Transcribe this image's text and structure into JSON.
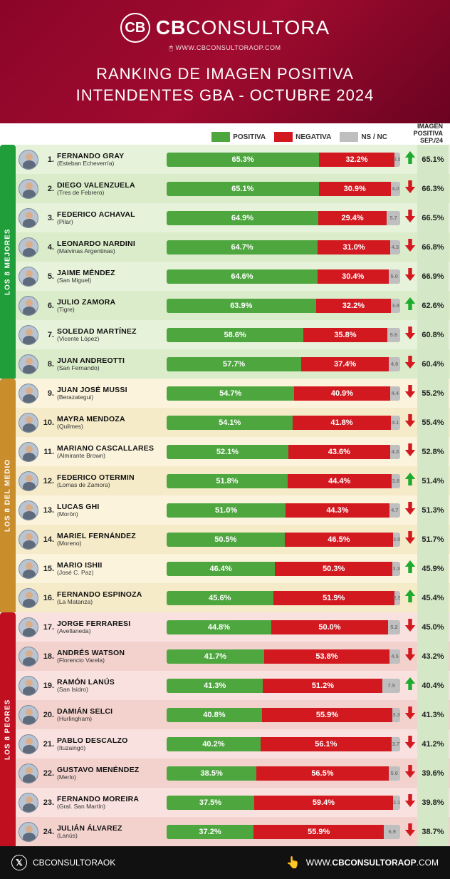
{
  "brand": {
    "cb": "CB",
    "name_bold": "CB",
    "name_rest": "CONSULTORA",
    "url": "WWW.CBCONSULTORAOP.COM"
  },
  "title_line1": "RANKING DE IMAGEN POSITIVA",
  "title_line2": "INTENDENTES GBA - OCTUBRE 2024",
  "legend": {
    "positive": "POSITIVA",
    "negative": "NEGATIVA",
    "nsnc": "NS / NC"
  },
  "prev_header_l1": "IMAGEN",
  "prev_header_l2": "POSITIVA",
  "prev_header_l3": "SEP./24",
  "colors": {
    "positive": "#4ea63f",
    "negative": "#d31920",
    "nsnc": "#bfbfbf",
    "group_best": "#1f9e3a",
    "group_mid": "#c98d2b",
    "group_worst": "#c01020",
    "row_best": "#e6f2da",
    "row_best_alt": "#daecc9",
    "row_mid": "#fbf3dc",
    "row_mid_alt": "#f6ebc9",
    "row_worst": "#f8e1de",
    "row_worst_alt": "#f3d2cd",
    "prev_col": "#d4e8c8",
    "arrow_up": "#1eaa2f",
    "arrow_down": "#d31920"
  },
  "groups": [
    {
      "label": "LOS 8 MEJORES",
      "color_key": "group_best"
    },
    {
      "label": "LOS 8 DEL MEDIO",
      "color_key": "group_mid"
    },
    {
      "label": "LOS 8 PEORES",
      "color_key": "group_worst"
    }
  ],
  "rows": [
    {
      "group": 0,
      "rank": "1.",
      "name": "FERNANDO GRAY",
      "place": "(Esteban Echeverría)",
      "pos": 65.3,
      "neg": 32.2,
      "ns": 2.5,
      "trend": "up",
      "prev": "65.1%"
    },
    {
      "group": 0,
      "rank": "2.",
      "name": "DIEGO VALENZUELA",
      "place": "(Tres de Febrero)",
      "pos": 65.1,
      "neg": 30.9,
      "ns": 4.0,
      "trend": "down",
      "prev": "66.3%"
    },
    {
      "group": 0,
      "rank": "3.",
      "name": "FEDERICO ACHAVAL",
      "place": "(Pilar)",
      "pos": 64.9,
      "neg": 29.4,
      "ns": 5.7,
      "trend": "down",
      "prev": "66.5%"
    },
    {
      "group": 0,
      "rank": "4.",
      "name": "LEONARDO NARDINI",
      "place": "(Malvinas Argentinas)",
      "pos": 64.7,
      "neg": 31.0,
      "ns": 4.3,
      "trend": "down",
      "prev": "66.8%"
    },
    {
      "group": 0,
      "rank": "5.",
      "name": "JAIME MÉNDEZ",
      "place": "(San Miguel)",
      "pos": 64.6,
      "neg": 30.4,
      "ns": 5.0,
      "trend": "down",
      "prev": "66.9%"
    },
    {
      "group": 0,
      "rank": "6.",
      "name": "JULIO ZAMORA",
      "place": "(Tigre)",
      "pos": 63.9,
      "neg": 32.2,
      "ns": 3.9,
      "trend": "up",
      "prev": "62.6%"
    },
    {
      "group": 0,
      "rank": "7.",
      "name": "SOLEDAD MARTÍNEZ",
      "place": "(Vicente López)",
      "pos": 58.6,
      "neg": 35.8,
      "ns": 5.6,
      "trend": "down",
      "prev": "60.8%"
    },
    {
      "group": 0,
      "rank": "8.",
      "name": "JUAN ANDREOTTI",
      "place": "(San Fernando)",
      "pos": 57.7,
      "neg": 37.4,
      "ns": 4.9,
      "trend": "down",
      "prev": "60.4%"
    },
    {
      "group": 1,
      "rank": "9.",
      "name": "JUAN JOSÉ MUSSI",
      "place": "(Berazategui)",
      "pos": 54.7,
      "neg": 40.9,
      "ns": 4.4,
      "trend": "down",
      "prev": "55.2%"
    },
    {
      "group": 1,
      "rank": "10.",
      "name": "MAYRA MENDOZA",
      "place": "(Quilmes)",
      "pos": 54.1,
      "neg": 41.8,
      "ns": 4.1,
      "trend": "down",
      "prev": "55.4%"
    },
    {
      "group": 1,
      "rank": "11.",
      "name": "MARIANO CASCALLARES",
      "place": "(Almirante Brown)",
      "pos": 52.1,
      "neg": 43.6,
      "ns": 4.3,
      "trend": "down",
      "prev": "52.8%"
    },
    {
      "group": 1,
      "rank": "12.",
      "name": "FEDERICO OTERMIN",
      "place": "(Lomas de Zamora)",
      "pos": 51.8,
      "neg": 44.4,
      "ns": 3.8,
      "trend": "up",
      "prev": "51.4%"
    },
    {
      "group": 1,
      "rank": "13.",
      "name": "LUCAS GHI",
      "place": "(Morón)",
      "pos": 51.0,
      "neg": 44.3,
      "ns": 4.7,
      "trend": "down",
      "prev": "51.3%"
    },
    {
      "group": 1,
      "rank": "14.",
      "name": "MARIEL FERNÁNDEZ",
      "place": "(Moreno)",
      "pos": 50.5,
      "neg": 46.5,
      "ns": 3.0,
      "trend": "down",
      "prev": "51.7%"
    },
    {
      "group": 1,
      "rank": "15.",
      "name": "MARIO ISHII",
      "place": "(José C. Paz)",
      "pos": 46.4,
      "neg": 50.3,
      "ns": 3.3,
      "trend": "up",
      "prev": "45.9%"
    },
    {
      "group": 1,
      "rank": "16.",
      "name": "FERNANDO ESPINOZA",
      "place": "(La Matanza)",
      "pos": 45.6,
      "neg": 51.9,
      "ns": 2.5,
      "trend": "up",
      "prev": "45.4%"
    },
    {
      "group": 2,
      "rank": "17.",
      "name": "JORGE FERRARESI",
      "place": "(Avellaneda)",
      "pos": 44.8,
      "neg": 50.0,
      "ns": 5.2,
      "trend": "down",
      "prev": "45.0%"
    },
    {
      "group": 2,
      "rank": "18.",
      "name": "ANDRÉS WATSON",
      "place": "(Florencio Varela)",
      "pos": 41.7,
      "neg": 53.8,
      "ns": 4.5,
      "trend": "down",
      "prev": "43.2%"
    },
    {
      "group": 2,
      "rank": "19.",
      "name": "RAMÓN LANÚS",
      "place": "(San Isidro)",
      "pos": 41.3,
      "neg": 51.2,
      "ns": 7.5,
      "trend": "up",
      "prev": "40.4%"
    },
    {
      "group": 2,
      "rank": "20.",
      "name": "DAMIÁN SELCI",
      "place": "(Hurlingham)",
      "pos": 40.8,
      "neg": 55.9,
      "ns": 3.3,
      "trend": "down",
      "prev": "41.3%"
    },
    {
      "group": 2,
      "rank": "21.",
      "name": "PABLO DESCALZO",
      "place": "(Ituzaingó)",
      "pos": 40.2,
      "neg": 56.1,
      "ns": 3.7,
      "trend": "down",
      "prev": "41.2%"
    },
    {
      "group": 2,
      "rank": "22.",
      "name": "GUSTAVO MENÉNDEZ",
      "place": "(Merlo)",
      "pos": 38.5,
      "neg": 56.5,
      "ns": 5.0,
      "trend": "down",
      "prev": "39.6%"
    },
    {
      "group": 2,
      "rank": "23.",
      "name": "FERNANDO MOREIRA",
      "place": "(Gral. San Martín)",
      "pos": 37.5,
      "neg": 59.4,
      "ns": 3.1,
      "trend": "down",
      "prev": "39.8%"
    },
    {
      "group": 2,
      "rank": "24.",
      "name": "JULIÁN ÁLVAREZ",
      "place": "(Lanús)",
      "pos": 37.2,
      "neg": 55.9,
      "ns": 6.9,
      "trend": "down",
      "prev": "38.7%"
    }
  ],
  "footer": {
    "handle": "CBCONSULTORAOK",
    "site_pre": "WWW.",
    "site_bold": "CBCONSULTORAOP",
    "site_post": ".COM"
  }
}
